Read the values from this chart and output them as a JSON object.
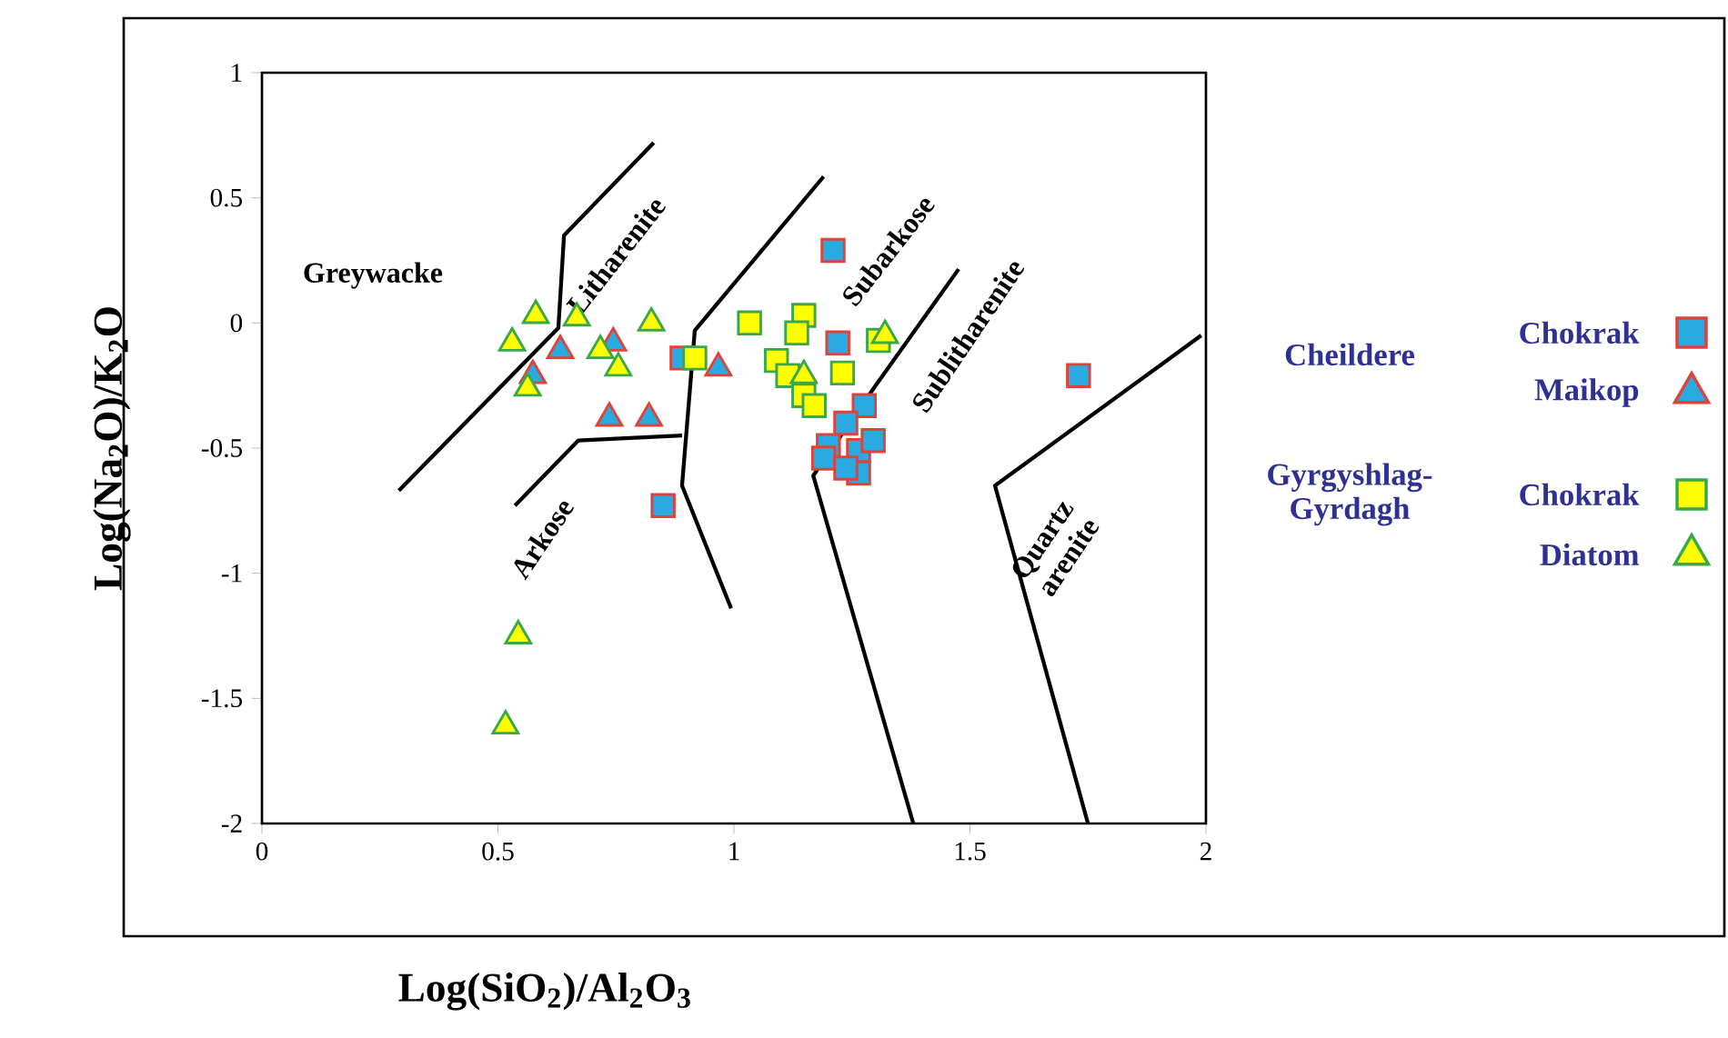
{
  "chart_data": {
    "type": "scatter",
    "xlabel": "Log(SiO$_{2}$)/Al$_{2}$O$_{3}$",
    "ylabel": "Log(Na$_{2}$O)/K$_{2}$O",
    "xlim": [
      0,
      2
    ],
    "ylim": [
      -2,
      1
    ],
    "xticks": [
      0,
      0.5,
      1,
      1.5,
      2
    ],
    "yticks": [
      -2,
      -1.5,
      -1,
      -0.5,
      0,
      0.5,
      1
    ],
    "grid": false,
    "legend": "right",
    "series": [
      {
        "type": "line",
        "color": "#000000",
        "marker": "none",
        "line_style": "solid",
        "x": [
          0.29,
          0.628,
          0.64,
          0.83
        ],
        "values": [
          -0.67,
          -0.02,
          0.35,
          0.72
        ]
      },
      {
        "type": "line",
        "color": "#000000",
        "marker": "none",
        "line_style": "solid",
        "x": [
          0.536,
          0.67,
          0.89
        ],
        "values": [
          -0.73,
          -0.47,
          -0.45
        ]
      },
      {
        "type": "line",
        "color": "#000000",
        "marker": "none",
        "line_style": "solid",
        "x": [
          1.19,
          0.917,
          0.89,
          0.994
        ],
        "values": [
          0.585,
          -0.03,
          -0.65,
          -1.14
        ]
      },
      {
        "type": "line",
        "color": "#000000",
        "marker": "none",
        "line_style": "solid",
        "x": [
          1.476,
          1.3,
          1.168,
          1.38
        ],
        "values": [
          0.215,
          -0.25,
          -0.61,
          -2
        ]
      },
      {
        "type": "line",
        "color": "#000000",
        "marker": "none",
        "line_style": "solid",
        "x": [
          1.99,
          1.553,
          1.75
        ],
        "values": [
          -0.05,
          -0.65,
          -2
        ]
      },
      {
        "name": "Chokrak",
        "color": "#29abe2",
        "marker": "square",
        "x": [
          1.21,
          0.85,
          0.89,
          1.22,
          1.73,
          1.276,
          1.2,
          1.237,
          1.264,
          1.295,
          1.264,
          1.19,
          1.237
        ],
        "values": [
          0.29,
          -0.73,
          -0.14,
          -0.08,
          -0.21,
          -0.33,
          -0.49,
          -0.4,
          -0.51,
          -0.47,
          -0.6,
          -0.54,
          -0.58
        ]
      },
      {
        "name": "Maikop",
        "color": "#29abe2",
        "marker": "triangle",
        "x": [
          0.632,
          0.744,
          0.967,
          0.736,
          0.82,
          0.574
        ],
        "values": [
          -0.11,
          -0.08,
          -0.18,
          -0.38,
          -0.38,
          -0.21
        ]
      },
      {
        "name": "Chokrak",
        "color": "#ffff00",
        "marker": "square",
        "x": [
          1.033,
          0.917,
          1.148,
          1.133,
          1.09,
          1.114,
          1.148,
          1.17,
          1.23,
          1.306
        ],
        "values": [
          0.0,
          -0.14,
          0.03,
          -0.04,
          -0.15,
          -0.21,
          -0.29,
          -0.33,
          -0.2,
          -0.07
        ]
      },
      {
        "name": "Diatom",
        "color": "#ffff00",
        "marker": "triangle",
        "x": [
          0.53,
          0.58,
          0.667,
          0.717,
          0.755,
          0.825,
          0.563,
          0.543,
          0.516,
          1.148,
          1.32
        ],
        "values": [
          -0.08,
          0.03,
          0.02,
          -0.11,
          -0.18,
          0.0,
          -0.26,
          -1.25,
          -1.61,
          -0.21,
          -0.05
        ]
      }
    ],
    "annotations": [
      "Greywacke",
      "Litharenite",
      "Subarkose",
      "Sublitharenite",
      "Arkose",
      "Quartz arenite",
      "Cheildere",
      "Gyrgyshlag-Gyrdagh"
    ]
  }
}
